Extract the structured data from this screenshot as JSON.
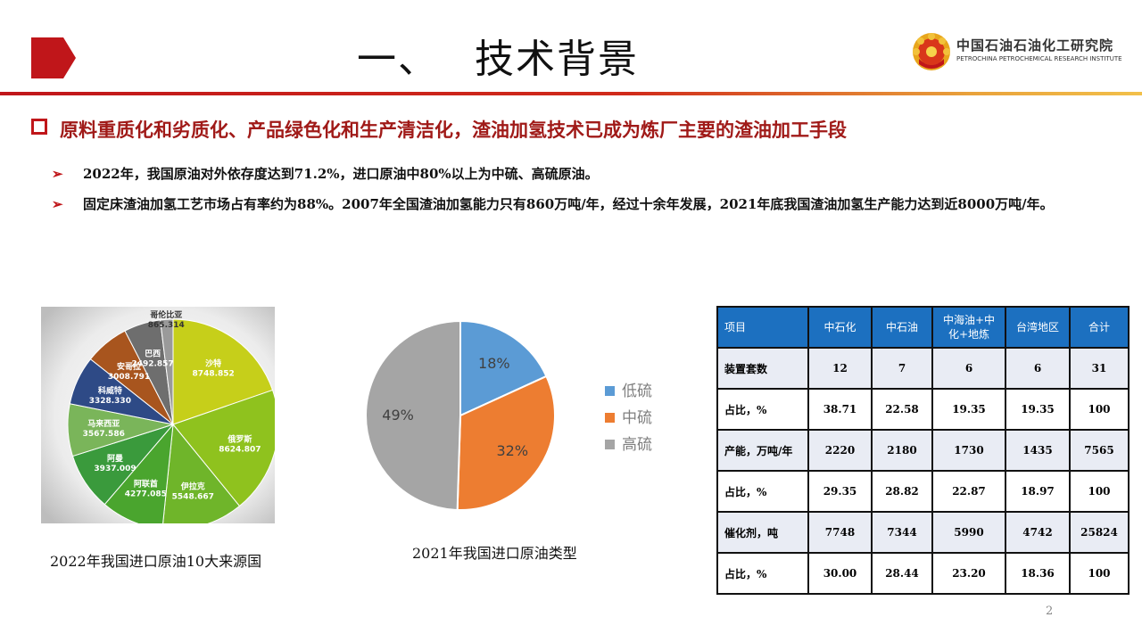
{
  "header": {
    "section_number": "一、",
    "section_title": "技术背景",
    "logo_cn": "中国石油石油化工研究院",
    "logo_en": "PETROCHINA PETROCHEMICAL RESEARCH INSTITUTE"
  },
  "heading": "原料重质化和劣质化、产品绿色化和生产清洁化，渣油加氢技术已成为炼厂主要的渣油加工手段",
  "bullets": [
    "2022年，我国原油对外依存度达到71.2%，进口原油中80%以上为中硫、高硫原油。",
    "固定床渣油加氢工艺市场占有率约为88%。2007年全国渣油加氢能力只有860万吨/年，经过十余年发展，2021年底我国渣油加氢生产能力达到近8000万吨/年。"
  ],
  "captions": {
    "left": "2022年我国进口原油10大来源国",
    "middle": "2021年我国进口原油类型"
  },
  "colors": {
    "accent_red": "#c0161a",
    "table_header": "#1c70c0",
    "low_sulfur": "#5b9bd5",
    "mid_sulfur": "#ed7d31",
    "high_sulfur": "#a5a5a5"
  },
  "chart_data": [
    {
      "type": "pie",
      "slices": [
        {
          "name": "沙特",
          "value": 8748.852,
          "color": "#c6cf1a"
        },
        {
          "name": "俄罗斯",
          "value": 8624.807,
          "color": "#8fc21e"
        },
        {
          "name": "伊拉克",
          "value": 5548.667,
          "color": "#6fb52a"
        },
        {
          "name": "阿联酋",
          "value": 4277.085,
          "color": "#4aa52e"
        },
        {
          "name": "阿曼",
          "value": 3937.009,
          "color": "#3a9a3c"
        },
        {
          "name": "马来西亚",
          "value": 3567.586,
          "color": "#7ab55a"
        },
        {
          "name": "科威特",
          "value": 3328.33,
          "color": "#2e4a86"
        },
        {
          "name": "安哥拉",
          "value": 3008.791,
          "color": "#a8551e"
        },
        {
          "name": "巴西",
          "value": 2492.857,
          "color": "#6e6e6e"
        },
        {
          "name": "哥伦比亚",
          "value": 865.314,
          "color": "#9a9a9a"
        }
      ]
    },
    {
      "type": "pie",
      "slices": [
        {
          "name": "低硫",
          "value": 18,
          "label": "18%",
          "color": "#5b9bd5"
        },
        {
          "name": "中硫",
          "value": 32,
          "label": "32%",
          "color": "#ed7d31"
        },
        {
          "name": "高硫",
          "value": 49,
          "label": "49%",
          "color": "#a5a5a5"
        }
      ],
      "legend": "right"
    },
    {
      "type": "table",
      "columns": [
        "项目",
        "中石化",
        "中石油",
        "中海油+中化+地炼",
        "台湾地区",
        "合计"
      ],
      "rows": [
        [
          "装置套数",
          "12",
          "7",
          "6",
          "6",
          "31"
        ],
        [
          "占比，%",
          "38.71",
          "22.58",
          "19.35",
          "19.35",
          "100"
        ],
        [
          "产能，万吨/年",
          "2220",
          "2180",
          "1730",
          "1435",
          "7565"
        ],
        [
          "占比，%",
          "29.35",
          "28.82",
          "22.87",
          "18.97",
          "100"
        ],
        [
          "催化剂，吨",
          "7748",
          "7344",
          "5990",
          "4742",
          "25824"
        ],
        [
          "占比，%",
          "30.00",
          "28.44",
          "23.20",
          "18.36",
          "100"
        ]
      ]
    }
  ],
  "page_number": "2"
}
